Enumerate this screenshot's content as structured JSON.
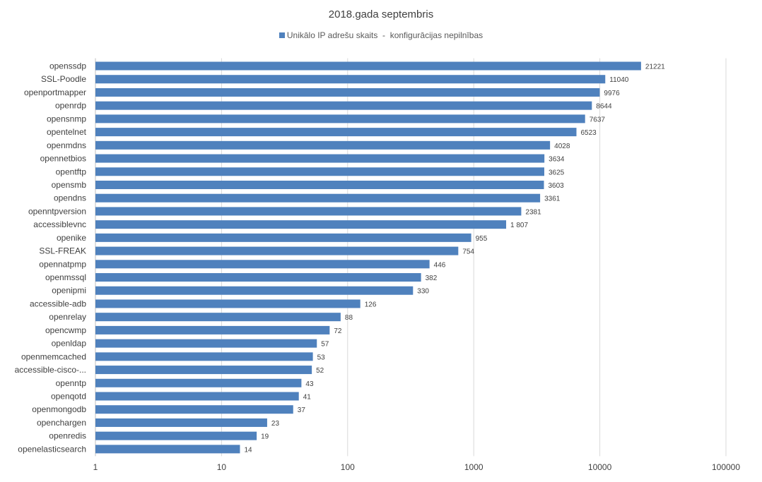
{
  "chart_data": {
    "type": "bar",
    "orientation": "horizontal",
    "title": "2018.gada septembris",
    "series": [
      {
        "name": "Unikālo IP adrešu skaits  -  konfigurācijas nepilnības",
        "color": "#4f81bd",
        "values": [
          21221,
          11040,
          9976,
          8644,
          7637,
          6523,
          4028,
          3634,
          3625,
          3603,
          3361,
          2381,
          1807,
          955,
          754,
          446,
          382,
          330,
          126,
          88,
          72,
          57,
          53,
          52,
          43,
          41,
          37,
          23,
          19,
          14
        ],
        "value_labels": [
          "21221",
          "11040",
          "9976",
          "8644",
          "7637",
          "6523",
          "4028",
          "3634",
          "3625",
          "3603",
          "3361",
          "2381",
          "1 807",
          "955",
          "754",
          "446",
          "382",
          "330",
          "126",
          "88",
          "72",
          "57",
          "53",
          "52",
          "43",
          "41",
          "37",
          "23",
          "19",
          "14"
        ]
      }
    ],
    "categories": [
      "openssdp",
      "SSL-Poodle",
      "openportmapper",
      "openrdp",
      "opensnmp",
      "opentelnet",
      "openmdns",
      "opennetbios",
      "opentftp",
      "opensmb",
      "opendns",
      "openntpversion",
      "accessiblevnc",
      "openike",
      "SSL-FREAK",
      "opennatpmp",
      "openmssql",
      "openipmi",
      "accessible-adb",
      "openrelay",
      "opencwmp",
      "openldap",
      "openmemcached",
      "accessible-cisco-...",
      "openntp",
      "openqotd",
      "openmongodb",
      "openchargen",
      "openredis",
      "openelasticsearch"
    ],
    "x_scale": "log",
    "xlim": [
      1,
      100000
    ],
    "x_ticks": [
      "1",
      "10",
      "100",
      "1000",
      "10000",
      "100000"
    ],
    "grid": "vertical",
    "legend_position": "top"
  }
}
